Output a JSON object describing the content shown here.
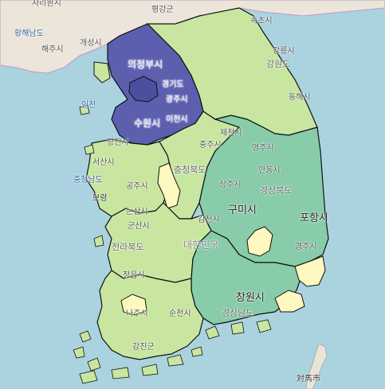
{
  "map": {
    "colors": {
      "sea": "#aad3df",
      "land_base": "#e6e1d6",
      "choropleth_light": "#fdf7c0",
      "choropleth_pale_green": "#c9e6a1",
      "choropleth_green": "#a3d69c",
      "choropleth_teal": "#88ccaa",
      "choropleth_blue": "#5b5fae",
      "choropleth_dark_blue": "#4b4f9e",
      "border": "#111111"
    },
    "labels": {
      "sariwon": "사리원시",
      "pyeonggang": "평강군",
      "hwanghae_south": "황해남도",
      "haeju": "해주시",
      "kaesong": "개성시",
      "sokcho": "속초시",
      "uijeongbu": "의정부시",
      "gangneung": "강릉시",
      "gangwon": "강원도",
      "gyeonggi": "경기도",
      "incheon": "인천",
      "gwangju_gg": "광주시",
      "donghae": "동해시",
      "suwon": "수원시",
      "icheon": "이천시",
      "jecheon": "제천시",
      "chungju": "충주시",
      "dangjin": "당진시",
      "seosan": "서산시",
      "chungnam": "충청남도",
      "chungbuk": "충청북도",
      "yeongju": "영주시",
      "andong": "안동시",
      "sangju": "상주시",
      "gyeongbuk": "경상북도",
      "gongju": "공주시",
      "boryeong": "보령",
      "nonsan": "논산시",
      "gimcheon": "김천시",
      "gumi": "구미시",
      "pohang": "포항시",
      "gunsan": "군산시",
      "jeonbuk": "전라북도",
      "daehanminguk": "대한민국",
      "gyeongju": "경주시",
      "jeongeup": "정읍시",
      "changwon": "창원시",
      "gyeongnam": "경상남도",
      "naju": "나주시",
      "suncheon": "순천시",
      "gangjin": "강진군",
      "tsushima": "対馬市"
    }
  }
}
